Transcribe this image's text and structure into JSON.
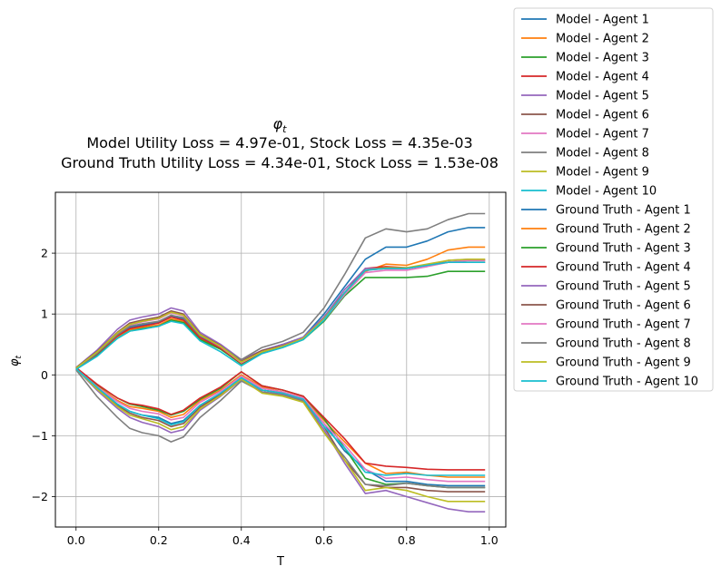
{
  "chart_data": {
    "type": "line",
    "title_main": "φ",
    "title_main_sub": "t",
    "title_line2": "Model Utility Loss = 4.97e-01, Stock Loss = 4.35e-03",
    "title_line3": "Ground Truth Utility Loss = 4.34e-01, Stock Loss = 1.53e-08",
    "xlabel": "T",
    "ylabel_main": "φ",
    "ylabel_sub": "t",
    "xlim": [
      -0.05,
      1.04
    ],
    "ylim": [
      -2.5,
      3.0
    ],
    "xticks": [
      0.0,
      0.2,
      0.4,
      0.6,
      0.8,
      1.0
    ],
    "xtick_labels": [
      "0.0",
      "0.2",
      "0.4",
      "0.6",
      "0.8",
      "1.0"
    ],
    "yticks": [
      -2,
      -1,
      0,
      1,
      2
    ],
    "ytick_labels": [
      "−2",
      "−1",
      "0",
      "1",
      "2"
    ],
    "grid": true,
    "legend_placement": "outside-right",
    "x": [
      0.0,
      0.05,
      0.1,
      0.13,
      0.16,
      0.2,
      0.23,
      0.26,
      0.3,
      0.35,
      0.4,
      0.45,
      0.5,
      0.55,
      0.6,
      0.65,
      0.7,
      0.75,
      0.8,
      0.85,
      0.9,
      0.95,
      0.99
    ],
    "series": [
      {
        "name": "Model - Agent 1",
        "color": "#1f77b4",
        "values": [
          0.1,
          -0.2,
          -0.48,
          -0.6,
          -0.66,
          -0.7,
          -0.8,
          -0.75,
          -0.5,
          -0.3,
          -0.05,
          -0.25,
          -0.3,
          -0.4,
          -0.8,
          -1.25,
          -1.55,
          -1.75,
          -1.75,
          -1.8,
          -1.82,
          -1.82,
          -1.82
        ]
      },
      {
        "name": "Model - Agent 2",
        "color": "#ff7f0e",
        "values": [
          0.1,
          -0.18,
          -0.42,
          -0.52,
          -0.55,
          -0.6,
          -0.7,
          -0.65,
          -0.42,
          -0.25,
          0.0,
          -0.2,
          -0.28,
          -0.38,
          -0.75,
          -1.1,
          -1.45,
          -1.62,
          -1.6,
          -1.65,
          -1.68,
          -1.68,
          -1.68
        ]
      },
      {
        "name": "Model - Agent 3",
        "color": "#2ca02c",
        "values": [
          0.12,
          -0.16,
          -0.38,
          -0.48,
          -0.52,
          -0.58,
          -0.66,
          -0.6,
          -0.4,
          -0.22,
          0.05,
          -0.18,
          -0.25,
          -0.35,
          -0.72,
          -1.2,
          -1.7,
          -1.8,
          -1.78,
          -1.82,
          -1.85,
          -1.85,
          -1.85
        ]
      },
      {
        "name": "Model - Agent 4",
        "color": "#d62728",
        "values": [
          0.12,
          -0.15,
          -0.38,
          -0.47,
          -0.5,
          -0.56,
          -0.65,
          -0.58,
          -0.38,
          -0.2,
          0.05,
          -0.18,
          -0.25,
          -0.35,
          -0.7,
          -1.05,
          -1.45,
          -1.5,
          -1.52,
          -1.55,
          -1.56,
          -1.56,
          -1.56
        ]
      },
      {
        "name": "Model - Agent 5",
        "color": "#9467bd",
        "values": [
          0.1,
          -0.25,
          -0.55,
          -0.7,
          -0.78,
          -0.85,
          -0.95,
          -0.9,
          -0.58,
          -0.35,
          -0.08,
          -0.28,
          -0.32,
          -0.42,
          -0.9,
          -1.45,
          -1.95,
          -1.9,
          -2.0,
          -2.1,
          -2.2,
          -2.25,
          -2.25
        ]
      },
      {
        "name": "Model - Agent 6",
        "color": "#8c564b",
        "values": [
          0.1,
          -0.22,
          -0.5,
          -0.63,
          -0.7,
          -0.75,
          -0.85,
          -0.8,
          -0.53,
          -0.32,
          -0.05,
          -0.25,
          -0.3,
          -0.4,
          -0.85,
          -1.4,
          -1.8,
          -1.85,
          -1.85,
          -1.9,
          -1.92,
          -1.92,
          -1.92
        ]
      },
      {
        "name": "Model - Agent 7",
        "color": "#e377c2",
        "values": [
          0.1,
          -0.19,
          -0.44,
          -0.55,
          -0.6,
          -0.64,
          -0.74,
          -0.7,
          -0.45,
          -0.27,
          -0.02,
          -0.22,
          -0.28,
          -0.38,
          -0.8,
          -1.15,
          -1.55,
          -1.7,
          -1.68,
          -1.72,
          -1.75,
          -1.75,
          -1.75
        ]
      },
      {
        "name": "Model - Agent 8",
        "color": "#7f7f7f",
        "values": [
          0.08,
          -0.35,
          -0.7,
          -0.88,
          -0.95,
          -1.0,
          -1.1,
          -1.02,
          -0.7,
          -0.42,
          -0.1,
          -0.28,
          -0.33,
          -0.43,
          -0.95,
          -1.35,
          -1.8,
          -1.82,
          -1.78,
          -1.82,
          -1.85,
          -1.85,
          -1.85
        ]
      },
      {
        "name": "Model - Agent 9",
        "color": "#bcbd22",
        "values": [
          0.1,
          -0.23,
          -0.52,
          -0.66,
          -0.72,
          -0.8,
          -0.9,
          -0.85,
          -0.56,
          -0.34,
          -0.07,
          -0.3,
          -0.35,
          -0.45,
          -0.95,
          -1.4,
          -1.9,
          -1.85,
          -1.9,
          -2.0,
          -2.08,
          -2.08,
          -2.08
        ]
      },
      {
        "name": "Model - Agent 10",
        "color": "#17becf",
        "values": [
          0.1,
          -0.2,
          -0.48,
          -0.6,
          -0.66,
          -0.72,
          -0.82,
          -0.77,
          -0.5,
          -0.3,
          -0.05,
          -0.25,
          -0.3,
          -0.4,
          -0.85,
          -1.2,
          -1.6,
          -1.65,
          -1.62,
          -1.65,
          -1.65,
          -1.65,
          -1.65
        ]
      },
      {
        "name": "Ground Truth - Agent 1",
        "color": "#1f77b4",
        "values": [
          0.1,
          0.35,
          0.65,
          0.78,
          0.82,
          0.86,
          0.96,
          0.92,
          0.62,
          0.45,
          0.2,
          0.4,
          0.5,
          0.62,
          1.0,
          1.45,
          1.9,
          2.1,
          2.1,
          2.2,
          2.35,
          2.42,
          2.42
        ]
      },
      {
        "name": "Ground Truth - Agent 2",
        "color": "#ff7f0e",
        "values": [
          0.1,
          0.33,
          0.62,
          0.74,
          0.78,
          0.82,
          0.92,
          0.88,
          0.6,
          0.43,
          0.18,
          0.38,
          0.48,
          0.6,
          0.95,
          1.35,
          1.7,
          1.82,
          1.8,
          1.9,
          2.05,
          2.1,
          2.1
        ]
      },
      {
        "name": "Ground Truth - Agent 3",
        "color": "#2ca02c",
        "values": [
          0.1,
          0.32,
          0.6,
          0.72,
          0.76,
          0.8,
          0.9,
          0.86,
          0.58,
          0.42,
          0.18,
          0.36,
          0.45,
          0.58,
          0.88,
          1.3,
          1.6,
          1.6,
          1.6,
          1.62,
          1.7,
          1.7,
          1.7
        ]
      },
      {
        "name": "Ground Truth - Agent 4",
        "color": "#d62728",
        "values": [
          0.1,
          0.34,
          0.64,
          0.76,
          0.8,
          0.85,
          0.95,
          0.9,
          0.61,
          0.44,
          0.19,
          0.38,
          0.48,
          0.6,
          0.95,
          1.35,
          1.75,
          1.78,
          1.76,
          1.8,
          1.85,
          1.85,
          1.85
        ]
      },
      {
        "name": "Ground Truth - Agent 5",
        "color": "#9467bd",
        "values": [
          0.12,
          0.4,
          0.75,
          0.9,
          0.95,
          1.0,
          1.1,
          1.05,
          0.7,
          0.5,
          0.25,
          0.4,
          0.5,
          0.62,
          0.95,
          1.4,
          1.75,
          1.75,
          1.75,
          1.8,
          1.88,
          1.9,
          1.9
        ]
      },
      {
        "name": "Ground Truth - Agent 6",
        "color": "#8c564b",
        "values": [
          0.12,
          0.38,
          0.7,
          0.85,
          0.9,
          0.95,
          1.05,
          1.0,
          0.67,
          0.48,
          0.22,
          0.4,
          0.48,
          0.6,
          0.92,
          1.35,
          1.72,
          1.75,
          1.75,
          1.8,
          1.85,
          1.88,
          1.88
        ]
      },
      {
        "name": "Ground Truth - Agent 7",
        "color": "#e377c2",
        "values": [
          0.11,
          0.36,
          0.68,
          0.82,
          0.87,
          0.92,
          1.02,
          0.97,
          0.65,
          0.46,
          0.2,
          0.38,
          0.47,
          0.6,
          0.9,
          1.32,
          1.68,
          1.72,
          1.72,
          1.78,
          1.85,
          1.88,
          1.88
        ]
      },
      {
        "name": "Ground Truth - Agent 8",
        "color": "#7f7f7f",
        "values": [
          0.1,
          0.35,
          0.66,
          0.8,
          0.84,
          0.88,
          0.98,
          0.94,
          0.64,
          0.47,
          0.25,
          0.45,
          0.55,
          0.7,
          1.1,
          1.65,
          2.25,
          2.4,
          2.35,
          2.4,
          2.55,
          2.65,
          2.65
        ]
      },
      {
        "name": "Ground Truth - Agent 9",
        "color": "#bcbd22",
        "values": [
          0.11,
          0.37,
          0.69,
          0.83,
          0.88,
          0.93,
          1.03,
          0.98,
          0.66,
          0.47,
          0.21,
          0.38,
          0.47,
          0.6,
          0.92,
          1.35,
          1.72,
          1.76,
          1.76,
          1.82,
          1.88,
          1.9,
          1.9
        ]
      },
      {
        "name": "Ground Truth - Agent 10",
        "color": "#17becf",
        "values": [
          0.09,
          0.3,
          0.6,
          0.72,
          0.75,
          0.8,
          0.88,
          0.84,
          0.56,
          0.38,
          0.15,
          0.35,
          0.45,
          0.58,
          0.9,
          1.35,
          1.72,
          1.75,
          1.75,
          1.8,
          1.85,
          1.85,
          1.85
        ]
      }
    ]
  }
}
